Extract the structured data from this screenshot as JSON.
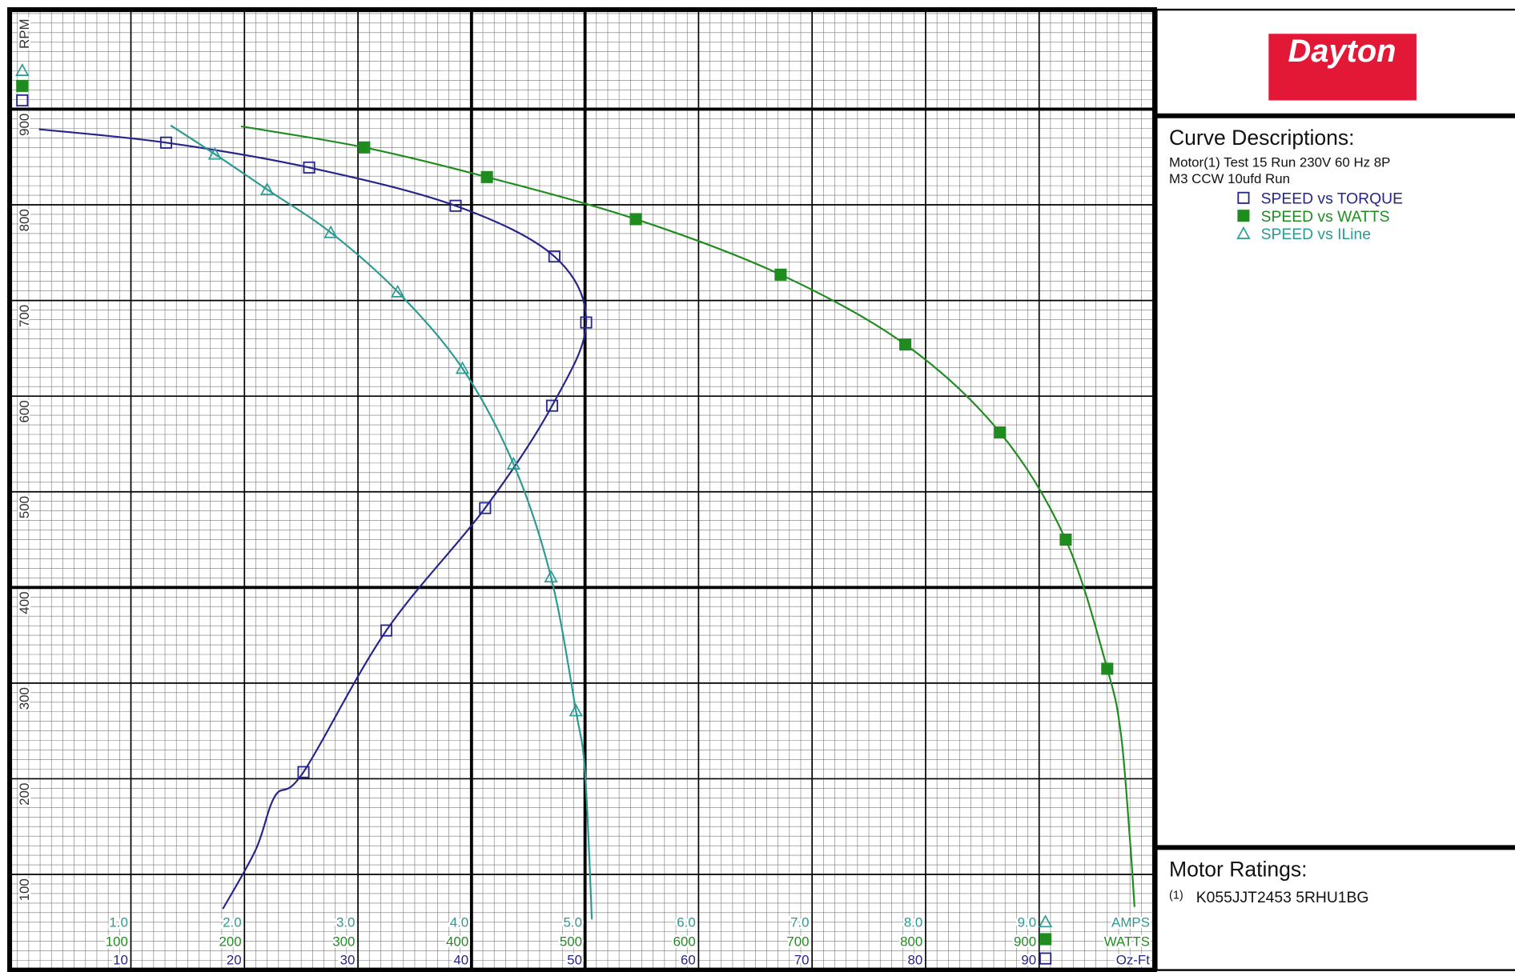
{
  "chart_data": {
    "type": "line",
    "y_label": "RPM",
    "ylim": [
      0,
      1000
    ],
    "yticks": [
      100,
      200,
      300,
      400,
      500,
      600,
      700,
      800,
      900
    ],
    "xlim": [
      0,
      10
    ],
    "x_label": "AMPS",
    "xticks": [
      {
        "value": 1,
        "label": "1.0"
      },
      {
        "value": 2,
        "label": "2.0"
      },
      {
        "value": 3,
        "label": "3.0"
      },
      {
        "value": 4,
        "label": "4.0"
      },
      {
        "value": 5,
        "label": "5.0"
      },
      {
        "value": 6,
        "label": "6.0"
      },
      {
        "value": 7,
        "label": "7.0"
      },
      {
        "value": 8,
        "label": "8.0"
      },
      {
        "value": 9,
        "label": "9.0"
      }
    ],
    "x2lim": [
      0,
      1000
    ],
    "x2_label": "WATTS",
    "x2ticks": [
      100,
      200,
      300,
      400,
      500,
      600,
      700,
      800,
      900
    ],
    "x3lim": [
      0,
      100
    ],
    "x3_label": "Oz-Ft",
    "x3ticks": [
      10,
      20,
      30,
      40,
      50,
      60,
      70,
      80,
      90
    ],
    "grid": true,
    "series": [
      {
        "name": "SPEED vs TORQUE",
        "color": "#25258a",
        "marker": "square-open",
        "axis": "x3",
        "x": [
          13.1,
          25.7,
          38.6,
          47.3,
          50.1,
          47.1,
          41.2,
          32.5,
          25.2
        ],
        "values": [
          865,
          839,
          799,
          746,
          677,
          590,
          483,
          355,
          207
        ],
        "curve_x": [
          1.9,
          13.1,
          25.7,
          38.6,
          47.3,
          50.1,
          47.1,
          41.2,
          32.5,
          25.2,
          22.7,
          21.0,
          18.1
        ],
        "curve_values": [
          879,
          865,
          839,
          799,
          746,
          677,
          590,
          483,
          355,
          207,
          182,
          126,
          64
        ]
      },
      {
        "name": "SPEED vs WATTS",
        "color": "#1f8c1f",
        "marker": "square-filled",
        "axis": "x2",
        "x": [
          305.5,
          413.6,
          544.7,
          672.3,
          782.1,
          865.5,
          923.4,
          960
        ],
        "values": [
          860,
          829,
          785,
          727,
          654,
          562,
          450,
          315
        ],
        "curve_x": [
          197,
          305.5,
          413.6,
          544.7,
          672.3,
          782.1,
          865.5,
          923.4,
          960,
          972,
          980,
          984
        ],
        "curve_values": [
          882,
          860,
          829,
          785,
          727,
          654,
          562,
          450,
          315,
          247,
          136,
          66
        ]
      },
      {
        "name": "SPEED vs ILine",
        "color": "#2a9a92",
        "marker": "triangle-open",
        "axis": "x",
        "x": [
          1.74,
          2.2,
          2.76,
          3.35,
          3.92,
          4.37,
          4.7,
          4.92
        ],
        "values": [
          853,
          816,
          771,
          709,
          629,
          529,
          411,
          271
        ],
        "curve_x": [
          1.35,
          1.74,
          2.2,
          2.76,
          3.35,
          3.92,
          4.37,
          4.7,
          4.92,
          5.0,
          5.06
        ],
        "curve_values": [
          883,
          853,
          816,
          771,
          709,
          629,
          529,
          411,
          271,
          207,
          53
        ]
      }
    ]
  },
  "panel": {
    "logo": "Dayton",
    "curve_title": "Curve Descriptions:",
    "description": [
      "Motor(1) Test 15 Run 230V 60 Hz 8P",
      "M3 CCW 10ufd Run"
    ],
    "ratings_title": "Motor Ratings:",
    "ratings_ref": "(1)",
    "ratings": "K055JJT2453   5RHU1BG"
  }
}
